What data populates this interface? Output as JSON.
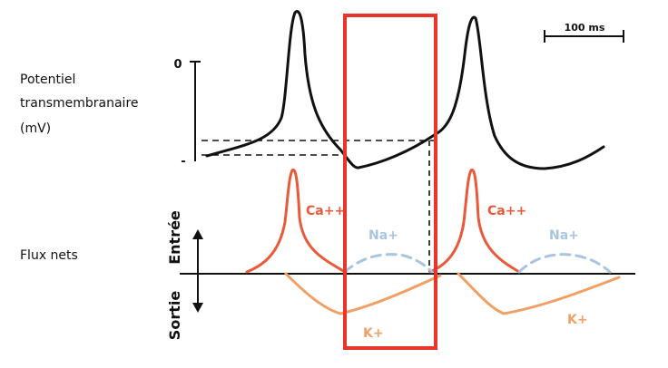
{
  "labels": {
    "potential_line1": "Potentiel",
    "potential_line2": "transmembranaire",
    "potential_line3": "(mV)",
    "zero_tick": "0",
    "minus_tick": "-",
    "scale_bar": "100 ms",
    "flux": "Flux nets",
    "entree": "Entrée",
    "sortie": "Sortie"
  },
  "ions": {
    "ca_1": "Ca++",
    "na_1": "Na+",
    "k_1": "K+",
    "ca_2": "Ca++",
    "na_2": "Na+",
    "k_2": "K+"
  },
  "colors": {
    "calcium": "#e85a3a",
    "sodium": "#a9c4df",
    "potassium": "#f0a064",
    "highlight": "#e8342a",
    "line": "#111111"
  }
}
